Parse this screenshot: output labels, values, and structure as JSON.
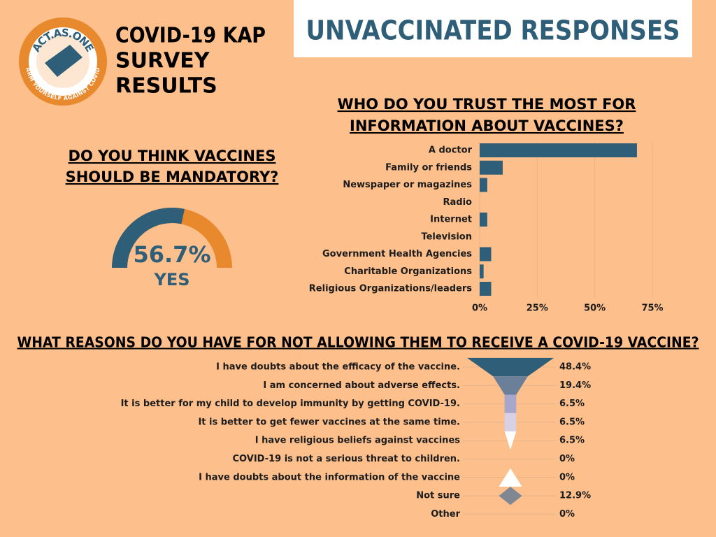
{
  "header": {
    "logo_top": "ACT.AS.ONE",
    "logo_bottom": "ARM YOURSELF AGAINST COVID",
    "title_lines": [
      "COVID-19 KAP",
      "SURVEY",
      "RESULTS"
    ],
    "banner": "UNVACCINATED RESPONSES"
  },
  "chart_data": [
    {
      "type": "gauge",
      "title_lines": [
        "DO YOU THINK VACCINES",
        "SHOULD BE MANDATORY?"
      ],
      "value": 56.7,
      "value_label": "56.7%",
      "label": "YES",
      "ylim": [
        0,
        100
      ],
      "color": "#2e5e78",
      "track_color": "#e8892e"
    },
    {
      "type": "bar",
      "title_lines": [
        "WHO DO YOU TRUST THE MOST FOR",
        "INFORMATION ABOUT VACCINES?"
      ],
      "categories": [
        "A doctor",
        "Family or friends",
        "Newspaper or magazines",
        "Radio",
        "Internet",
        "Television",
        "Government Health Agencies",
        "Charitable Organizations",
        "Religious Organizations/leaders"
      ],
      "values": [
        68.3,
        10,
        3.3,
        0,
        3.3,
        0,
        5,
        1.7,
        5
      ],
      "xlim": [
        0,
        75
      ],
      "xticks": [
        {
          "value": 0,
          "label": "0%"
        },
        {
          "value": 25,
          "label": "25%"
        },
        {
          "value": 50,
          "label": "50%"
        },
        {
          "value": 75,
          "label": "75%"
        }
      ],
      "color": "#2e5e78",
      "grid": true
    },
    {
      "type": "funnel",
      "title": "WHAT REASONS DO YOU HAVE FOR NOT ALLOWING THEM TO RECEIVE A COVID-19 VACCINE?",
      "categories": [
        "I have doubts about the efficacy of the vaccine.",
        "I am concerned about adverse effects.",
        "It is better for my child to develop immunity by getting COVID-19.",
        "It is better to get fewer vaccines at the same time.",
        "I have religious beliefs against vaccines",
        "COVID-19 is not a serious threat to children.",
        "I have doubts about the information of the vaccine",
        "Not sure",
        "Other"
      ],
      "values": [
        48.4,
        19.4,
        6.5,
        6.5,
        6.5,
        0,
        0,
        12.9,
        0
      ],
      "value_labels": [
        "48.4%",
        "19.4%",
        "6.5%",
        "6.5%",
        "6.5%",
        "0%",
        "0%",
        "12.9%",
        "0%"
      ],
      "colors": [
        "#2e5e78",
        "#6b7f99",
        "#a7a6cb",
        "#d8d1e6",
        "#ffffff",
        "#ffffff",
        "#ffffff",
        "#7e8792",
        "#ffffff"
      ]
    }
  ]
}
